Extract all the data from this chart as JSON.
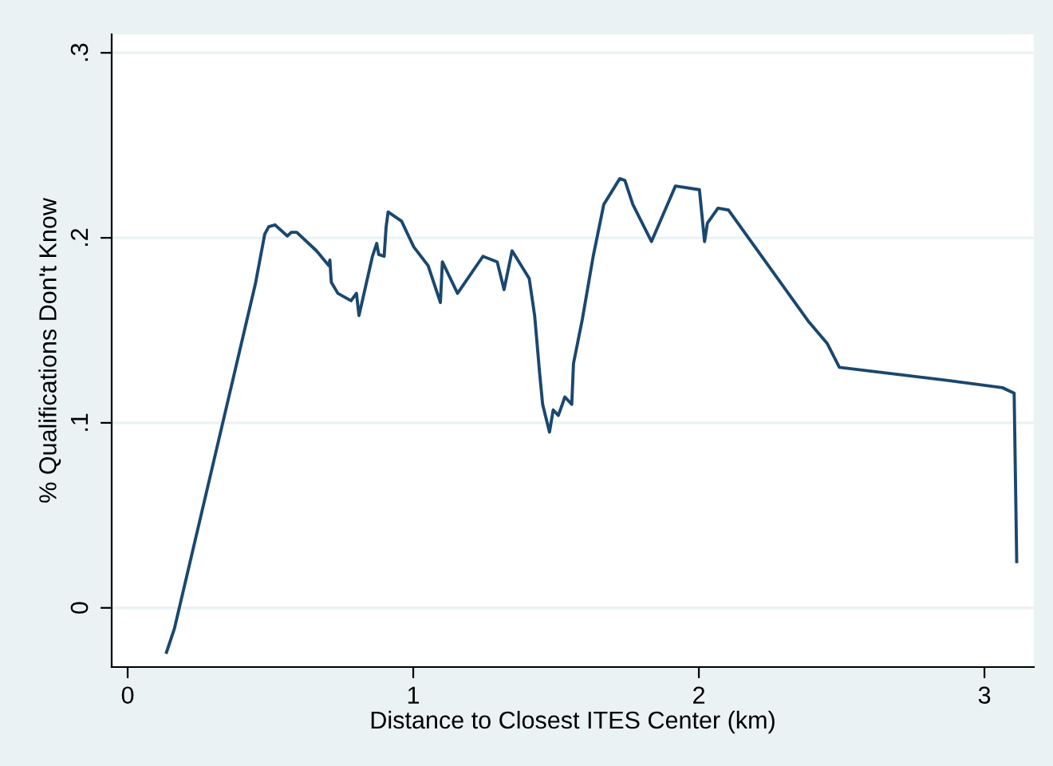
{
  "chart_data": {
    "type": "line",
    "xlabel": "Distance to Closest ITES Center (km)",
    "ylabel": "% Qualifications Don't Know",
    "series": [
      {
        "color": "#1a476f",
        "x": [
          0.136,
          0.164,
          0.447,
          0.48,
          0.494,
          0.516,
          0.559,
          0.573,
          0.592,
          0.661,
          0.704,
          0.708,
          0.713,
          0.736,
          0.782,
          0.801,
          0.81,
          0.857,
          0.872,
          0.879,
          0.898,
          0.905,
          0.912,
          0.959,
          1.002,
          1.052,
          1.095,
          1.102,
          1.155,
          1.244,
          1.294,
          1.318,
          1.346,
          1.406,
          1.425,
          1.443,
          1.453,
          1.477,
          1.49,
          1.508,
          1.531,
          1.555,
          1.561,
          1.592,
          1.63,
          1.667,
          1.723,
          1.741,
          1.769,
          1.834,
          1.918,
          2.002,
          2.02,
          2.03,
          2.067,
          2.104,
          2.383,
          2.449,
          2.492,
          2.868,
          3.063,
          3.104,
          3.113
        ],
        "values": [
          -0.024,
          -0.011,
          0.175,
          0.202,
          0.206,
          0.207,
          0.201,
          0.203,
          0.203,
          0.193,
          0.185,
          0.188,
          0.176,
          0.17,
          0.166,
          0.17,
          0.158,
          0.19,
          0.197,
          0.191,
          0.19,
          0.206,
          0.214,
          0.209,
          0.195,
          0.185,
          0.165,
          0.187,
          0.17,
          0.19,
          0.187,
          0.172,
          0.193,
          0.178,
          0.158,
          0.126,
          0.11,
          0.095,
          0.107,
          0.104,
          0.114,
          0.11,
          0.132,
          0.156,
          0.19,
          0.218,
          0.232,
          0.231,
          0.218,
          0.198,
          0.228,
          0.226,
          0.198,
          0.208,
          0.216,
          0.215,
          0.155,
          0.143,
          0.13,
          0.123,
          0.119,
          0.116,
          0.025
        ]
      }
    ],
    "xlim": [
      -0.056,
      3.173
    ],
    "ylim": [
      -0.032,
      0.31
    ],
    "xticks": [
      0,
      1,
      2,
      3
    ],
    "yticks": [
      0,
      {
        "value": 0.1,
        "label": ".1"
      },
      {
        "value": 0.2,
        "label": ".2"
      },
      {
        "value": 0.3,
        "label": ".3"
      }
    ],
    "grid": "y",
    "legend": false,
    "marker": "none",
    "line_style": "solid"
  }
}
